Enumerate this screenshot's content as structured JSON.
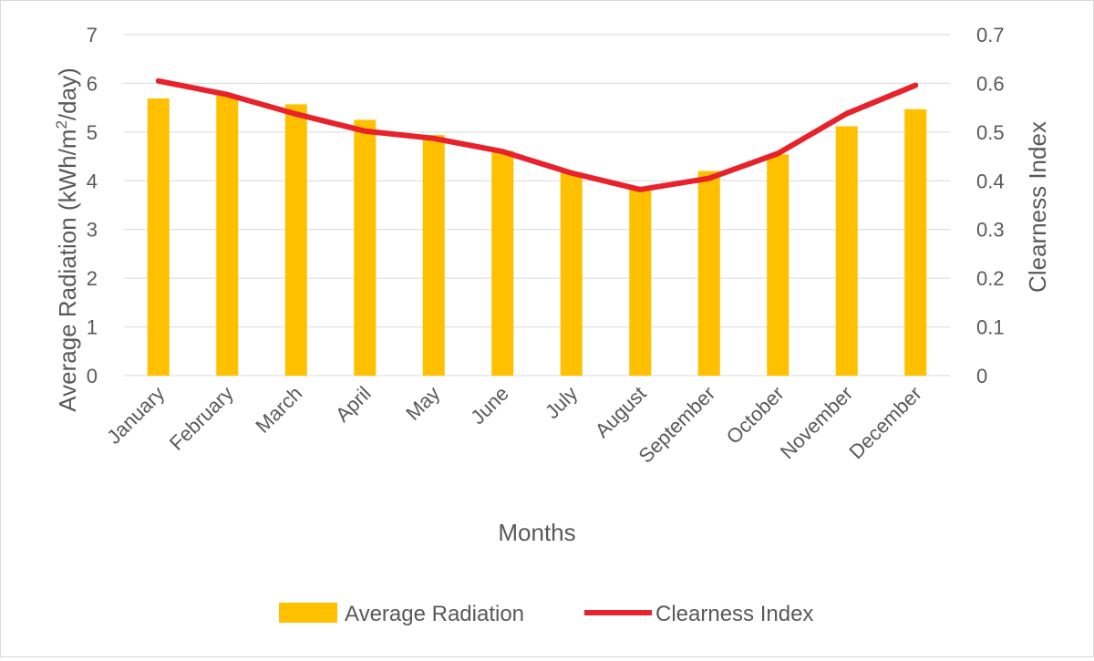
{
  "chart_data": {
    "type": "bar",
    "categories": [
      "January",
      "February",
      "March",
      "April",
      "May",
      "June",
      "July",
      "August",
      "September",
      "October",
      "November",
      "December"
    ],
    "series": [
      {
        "name": "Average Radiation",
        "type": "bar",
        "axis": "left",
        "values": [
          5.69,
          5.76,
          5.57,
          5.25,
          4.94,
          4.62,
          4.17,
          3.87,
          4.2,
          4.54,
          5.12,
          5.47
        ]
      },
      {
        "name": "Clearness Index",
        "type": "line",
        "axis": "right",
        "values": [
          0.605,
          0.577,
          0.537,
          0.502,
          0.487,
          0.46,
          0.416,
          0.382,
          0.405,
          0.456,
          0.538,
          0.596
        ]
      }
    ],
    "xlabel": "Months",
    "ylabel": "Average Radiation (kWh/m²/day)",
    "ylabel_parts": [
      "Average Radiation (kWh/m",
      "2",
      "/day)"
    ],
    "y2label": "Clearness Index",
    "ylim": [
      0,
      7
    ],
    "y2lim": [
      0,
      0.7
    ],
    "yticks": [
      "0",
      "1",
      "2",
      "3",
      "4",
      "5",
      "6",
      "7"
    ],
    "y2ticks": [
      "0",
      "0.1",
      "0.2",
      "0.3",
      "0.4",
      "0.5",
      "0.6",
      "0.7"
    ],
    "grid": true,
    "legend_position": "bottom",
    "colors": {
      "bar": "#FFC000",
      "line": "#E8212B",
      "grid": "#d9d9d9",
      "text": "#595959"
    }
  }
}
